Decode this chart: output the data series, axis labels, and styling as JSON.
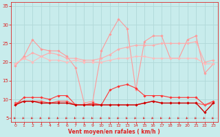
{
  "x": [
    0,
    1,
    2,
    3,
    4,
    5,
    6,
    7,
    8,
    9,
    10,
    11,
    12,
    13,
    14,
    15,
    16,
    17,
    18,
    19,
    20,
    21,
    22,
    23
  ],
  "series": [
    {
      "name": "rafales_high",
      "values": [
        19.0,
        21.5,
        26.0,
        23.5,
        23.0,
        23.0,
        21.5,
        18.5,
        9.0,
        9.5,
        23.0,
        27.5,
        31.5,
        29.0,
        12.5,
        25.5,
        27.0,
        27.0,
        21.0,
        21.0,
        26.0,
        27.0,
        17.0,
        19.5
      ],
      "color": "#ff9999",
      "lw": 0.8,
      "marker": "D",
      "ms": 1.8
    },
    {
      "name": "avg_high",
      "values": [
        19.5,
        21.0,
        22.5,
        21.5,
        22.5,
        22.0,
        21.0,
        21.0,
        20.5,
        20.5,
        21.0,
        22.0,
        23.5,
        24.0,
        24.5,
        24.5,
        24.5,
        25.0,
        25.0,
        25.0,
        25.0,
        25.5,
        20.0,
        20.5
      ],
      "color": "#ffaaaa",
      "lw": 0.8,
      "marker": "D",
      "ms": 1.8
    },
    {
      "name": "avg_mid",
      "values": [
        19.5,
        21.0,
        20.0,
        21.5,
        20.5,
        20.5,
        20.0,
        20.5,
        20.0,
        20.0,
        20.0,
        20.5,
        21.0,
        21.0,
        21.5,
        21.5,
        21.0,
        21.0,
        21.0,
        21.0,
        21.0,
        21.0,
        19.5,
        19.5
      ],
      "color": "#ffbbbb",
      "lw": 0.8,
      "marker": "D",
      "ms": 1.8
    },
    {
      "name": "wind_high",
      "values": [
        8.5,
        10.5,
        10.5,
        10.5,
        10.0,
        11.0,
        11.0,
        8.5,
        8.5,
        9.0,
        8.5,
        12.5,
        13.5,
        14.0,
        13.0,
        11.0,
        11.0,
        11.0,
        10.5,
        10.5,
        10.5,
        10.5,
        8.5,
        9.5
      ],
      "color": "#ff3333",
      "lw": 0.8,
      "marker": "D",
      "ms": 1.8
    },
    {
      "name": "wind_low1",
      "values": [
        9.0,
        9.5,
        9.5,
        9.5,
        9.0,
        9.5,
        9.5,
        8.5,
        8.5,
        8.5,
        8.5,
        8.5,
        8.5,
        8.5,
        8.5,
        9.0,
        9.5,
        9.0,
        9.0,
        9.0,
        9.0,
        9.0,
        8.5,
        9.0
      ],
      "color": "#ff5555",
      "lw": 0.8,
      "marker": "D",
      "ms": 1.8
    },
    {
      "name": "wind_low2",
      "values": [
        8.5,
        9.5,
        9.5,
        9.0,
        9.0,
        9.0,
        9.0,
        8.5,
        8.5,
        8.5,
        8.5,
        8.5,
        8.5,
        8.5,
        8.5,
        9.0,
        9.5,
        9.0,
        9.0,
        9.0,
        9.0,
        9.0,
        6.5,
        9.0
      ],
      "color": "#cc0000",
      "lw": 1.0,
      "marker": "D",
      "ms": 1.8
    }
  ],
  "xlabel": "Vent moyen/en rafales ( km/h )",
  "ylim": [
    4,
    36
  ],
  "yticks": [
    5,
    10,
    15,
    20,
    25,
    30,
    35
  ],
  "bg_color": "#c8ecec",
  "grid_color": "#b0d8d8",
  "tick_color": "#dd2222",
  "xlabel_color": "#dd2222",
  "arrow_color": "#dd2222"
}
